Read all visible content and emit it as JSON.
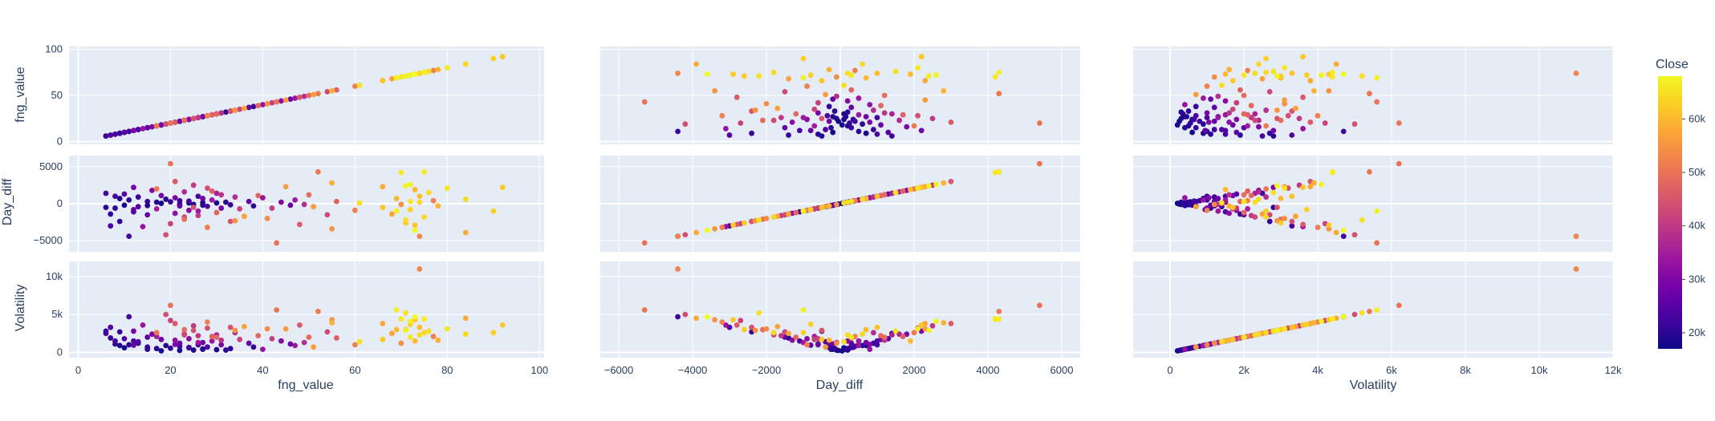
{
  "chart_data": {
    "type": "scatter",
    "subtype": "scatter-matrix",
    "variables": [
      "fng_value",
      "Day_diff",
      "Volatility"
    ],
    "axis_titles": {
      "x": [
        "fng_value",
        "Day_diff",
        "Volatility"
      ],
      "y": [
        "fng_value",
        "Day_diff",
        "Volatility"
      ]
    },
    "ranges": {
      "fng_value": [
        0,
        100
      ],
      "Day_diff": [
        -6500,
        6500
      ],
      "Volatility": [
        -1000,
        12000
      ]
    },
    "tick_labels": {
      "x": [
        [
          "0",
          "20",
          "40",
          "60",
          "80",
          "100"
        ],
        [
          "−6000",
          "−4000",
          "−2000",
          "0",
          "2000",
          "4000",
          "6000"
        ],
        [
          "0",
          "2k",
          "4k",
          "6k",
          "8k",
          "10k",
          "12k"
        ]
      ],
      "y": [
        [
          "0",
          "50",
          "100"
        ],
        [
          "−5000",
          "0",
          "5000"
        ],
        [
          "0",
          "5k",
          "10k"
        ]
      ]
    },
    "colorbar": {
      "title": "Close",
      "ticks": [
        "20k",
        "30k",
        "40k",
        "50k",
        "60k"
      ],
      "range": [
        17000,
        68000
      ],
      "colorscale": [
        "#0d0887",
        "#46039f",
        "#7201a8",
        "#9c179e",
        "#bd3786",
        "#d8576b",
        "#ed7953",
        "#fb9f3a",
        "#fdca26",
        "#f0f921"
      ]
    },
    "grid": true,
    "background": "#e5ecf6",
    "points": [
      {
        "fng": 92,
        "diff": 2200,
        "vol": 3600,
        "close": 62000
      },
      {
        "fng": 90,
        "diff": -1000,
        "vol": 2600,
        "close": 63000
      },
      {
        "fng": 84,
        "diff": -3900,
        "vol": 4500,
        "close": 58000
      },
      {
        "fng": 84,
        "diff": 600,
        "vol": 2400,
        "close": 64000
      },
      {
        "fng": 80,
        "diff": 2100,
        "vol": 3100,
        "close": 66000
      },
      {
        "fng": 78,
        "diff": -300,
        "vol": 1600,
        "close": 59000
      },
      {
        "fng": 77,
        "diff": 400,
        "vol": 2100,
        "close": 52000
      },
      {
        "fng": 76,
        "diff": 1500,
        "vol": 2800,
        "close": 65000
      },
      {
        "fng": 75,
        "diff": -1800,
        "vol": 2600,
        "close": 64000
      },
      {
        "fng": 74,
        "diff": 1000,
        "vol": 3300,
        "close": 61000
      },
      {
        "fng": 74,
        "diff": -4400,
        "vol": 11000,
        "close": 53000
      },
      {
        "fng": 73,
        "diff": -2900,
        "vol": 4300,
        "close": 62000
      },
      {
        "fng": 73,
        "diff": 1900,
        "vol": 1500,
        "close": 60000
      },
      {
        "fng": 72,
        "diff": -800,
        "vol": 3700,
        "close": 63000
      },
      {
        "fng": 72,
        "diff": 300,
        "vol": 2000,
        "close": 66000
      },
      {
        "fng": 71,
        "diff": -2200,
        "vol": 5200,
        "close": 65000
      },
      {
        "fng": 71,
        "diff": 2400,
        "vol": 2900,
        "close": 67000
      },
      {
        "fng": 70,
        "diff": 4200,
        "vol": 4400,
        "close": 66000
      },
      {
        "fng": 70,
        "diff": -100,
        "vol": 1200,
        "close": 54000
      },
      {
        "fng": 69,
        "diff": 700,
        "vol": 3000,
        "close": 60000
      },
      {
        "fng": 68,
        "diff": -1400,
        "vol": 2500,
        "close": 57000
      },
      {
        "fng": 66,
        "diff": 2300,
        "vol": 3800,
        "close": 58000
      },
      {
        "fng": 66,
        "diff": -500,
        "vol": 1700,
        "close": 62000
      },
      {
        "fng": 61,
        "diff": 100,
        "vol": 1400,
        "close": 65000
      },
      {
        "fng": 60,
        "diff": -900,
        "vol": 1000,
        "close": 52000
      },
      {
        "fng": 56,
        "diff": 300,
        "vol": 1900,
        "close": 47000
      },
      {
        "fng": 55,
        "diff": -3400,
        "vol": 4300,
        "close": 55000
      },
      {
        "fng": 54,
        "diff": -1500,
        "vol": 2700,
        "close": 43000
      },
      {
        "fng": 52,
        "diff": 4300,
        "vol": 5400,
        "close": 51000
      },
      {
        "fng": 51,
        "diff": -400,
        "vol": 700,
        "close": 56000
      },
      {
        "fng": 50,
        "diff": 1200,
        "vol": 2000,
        "close": 49000
      },
      {
        "fng": 49,
        "diff": -100,
        "vol": 1300,
        "close": 38000
      },
      {
        "fng": 48,
        "diff": -2800,
        "vol": 3600,
        "close": 46000
      },
      {
        "fng": 47,
        "diff": 500,
        "vol": 900,
        "close": 34000
      },
      {
        "fng": 46,
        "diff": -200,
        "vol": 1100,
        "close": 27000
      },
      {
        "fng": 44,
        "diff": 200,
        "vol": 1500,
        "close": 31000
      },
      {
        "fng": 43,
        "diff": -5300,
        "vol": 5600,
        "close": 50000
      },
      {
        "fng": 41,
        "diff": -2000,
        "vol": 3100,
        "close": 54000
      },
      {
        "fng": 40,
        "diff": 800,
        "vol": 400,
        "close": 33000
      },
      {
        "fng": 38,
        "diff": -300,
        "vol": 700,
        "close": 21000
      },
      {
        "fng": 37,
        "diff": 300,
        "vol": 1200,
        "close": 26000
      },
      {
        "fng": 35,
        "diff": -700,
        "vol": 1700,
        "close": 42000
      },
      {
        "fng": 34,
        "diff": 900,
        "vol": 2600,
        "close": 38000
      },
      {
        "fng": 33,
        "diff": -2400,
        "vol": 3300,
        "close": 45000
      },
      {
        "fng": 32,
        "diff": 200,
        "vol": 300,
        "close": 20000
      },
      {
        "fng": 31,
        "diff": -600,
        "vol": 1000,
        "close": 29000
      },
      {
        "fng": 30,
        "diff": 1400,
        "vol": 2300,
        "close": 36000
      },
      {
        "fng": 30,
        "diff": -1200,
        "vol": 2000,
        "close": 48000
      },
      {
        "fng": 29,
        "diff": 500,
        "vol": 1500,
        "close": 34000
      },
      {
        "fng": 28,
        "diff": -3200,
        "vol": 4000,
        "close": 52000
      },
      {
        "fng": 28,
        "diff": 2100,
        "vol": 3200,
        "close": 44000
      },
      {
        "fng": 27,
        "diff": -200,
        "vol": 400,
        "close": 19000
      },
      {
        "fng": 27,
        "diff": 700,
        "vol": 1300,
        "close": 28000
      },
      {
        "fng": 26,
        "diff": -1600,
        "vol": 2200,
        "close": 40000
      },
      {
        "fng": 26,
        "diff": 1000,
        "vol": 1000,
        "close": 23000
      },
      {
        "fng": 25,
        "diff": -500,
        "vol": 2900,
        "close": 45000
      },
      {
        "fng": 25,
        "diff": 2500,
        "vol": 3500,
        "close": 40000
      },
      {
        "fng": 24,
        "diff": 100,
        "vol": 600,
        "close": 18000
      },
      {
        "fng": 24,
        "diff": -900,
        "vol": 1800,
        "close": 31000
      },
      {
        "fng": 23,
        "diff": 1600,
        "vol": 2400,
        "close": 37000
      },
      {
        "fng": 23,
        "diff": -2100,
        "vol": 3000,
        "close": 49000
      },
      {
        "fng": 22,
        "diff": 400,
        "vol": 800,
        "close": 22000
      },
      {
        "fng": 22,
        "diff": -300,
        "vol": 1200,
        "close": 27000
      },
      {
        "fng": 21,
        "diff": 3000,
        "vol": 3800,
        "close": 46000
      },
      {
        "fng": 21,
        "diff": -1300,
        "vol": 1600,
        "close": 32000
      },
      {
        "fng": 20,
        "diff": 5400,
        "vol": 6200,
        "close": 50000
      },
      {
        "fng": 20,
        "diff": -2700,
        "vol": 4200,
        "close": 42000
      },
      {
        "fng": 19,
        "diff": 600,
        "vol": 900,
        "close": 20000
      },
      {
        "fng": 19,
        "diff": -4200,
        "vol": 5000,
        "close": 44000
      },
      {
        "fng": 18,
        "diff": 1100,
        "vol": 1700,
        "close": 28000
      },
      {
        "fng": 17,
        "diff": -700,
        "vol": 2100,
        "close": 35000
      },
      {
        "fng": 17,
        "diff": 200,
        "vol": 500,
        "close": 19000
      },
      {
        "fng": 16,
        "diff": 1800,
        "vol": 2400,
        "close": 30000
      },
      {
        "fng": 15,
        "diff": -1500,
        "vol": 2000,
        "close": 26000
      },
      {
        "fng": 15,
        "diff": 300,
        "vol": 700,
        "close": 21000
      },
      {
        "fng": 14,
        "diff": -3100,
        "vol": 3600,
        "close": 33000
      },
      {
        "fng": 13,
        "diff": 900,
        "vol": 1200,
        "close": 22000
      },
      {
        "fng": 13,
        "diff": -400,
        "vol": 1400,
        "close": 24000
      },
      {
        "fng": 12,
        "diff": 2200,
        "vol": 2800,
        "close": 29000
      },
      {
        "fng": 12,
        "diff": -1100,
        "vol": 1500,
        "close": 23000
      },
      {
        "fng": 11,
        "diff": 500,
        "vol": 1000,
        "close": 20000
      },
      {
        "fng": 11,
        "diff": -4400,
        "vol": 4700,
        "close": 22000
      },
      {
        "fng": 10,
        "diff": 1300,
        "vol": 1800,
        "close": 25000
      },
      {
        "fng": 10,
        "diff": -200,
        "vol": 600,
        "close": 18000
      },
      {
        "fng": 9,
        "diff": -2400,
        "vol": 2700,
        "close": 21000
      },
      {
        "fng": 9,
        "diff": 700,
        "vol": 900,
        "close": 19000
      },
      {
        "fng": 8,
        "diff": -600,
        "vol": 1100,
        "close": 20000
      },
      {
        "fng": 8,
        "diff": 1000,
        "vol": 1500,
        "close": 23000
      },
      {
        "fng": 7,
        "diff": -1400,
        "vol": 1900,
        "close": 21000
      },
      {
        "fng": 7,
        "diff": -3000,
        "vol": 3300,
        "close": 24000
      },
      {
        "fng": 6,
        "diff": 1400,
        "vol": 2500,
        "close": 22000
      },
      {
        "fng": 6,
        "diff": -500,
        "vol": 2800,
        "close": 20000
      },
      {
        "fng": 25,
        "diff": -100,
        "vol": 300,
        "close": 18500
      },
      {
        "fng": 30,
        "diff": 100,
        "vol": 350,
        "close": 19000
      },
      {
        "fng": 22,
        "diff": -50,
        "vol": 250,
        "close": 18200
      },
      {
        "fng": 18,
        "diff": 50,
        "vol": 200,
        "close": 18000
      },
      {
        "fng": 27,
        "diff": 150,
        "vol": 450,
        "close": 19500
      },
      {
        "fng": 33,
        "diff": -150,
        "vol": 500,
        "close": 20500
      },
      {
        "fng": 15,
        "diff": -250,
        "vol": 400,
        "close": 19800
      },
      {
        "fng": 20,
        "diff": 250,
        "vol": 550,
        "close": 21000
      },
      {
        "fng": 24,
        "diff": 350,
        "vol": 650,
        "close": 22500
      },
      {
        "fng": 28,
        "diff": -350,
        "vol": 700,
        "close": 23500
      },
      {
        "fng": 12,
        "diff": -800,
        "vol": 950,
        "close": 26000
      },
      {
        "fng": 21,
        "diff": 800,
        "vol": 1050,
        "close": 30000
      },
      {
        "fng": 26,
        "diff": -1000,
        "vol": 1300,
        "close": 34000
      },
      {
        "fng": 31,
        "diff": 1200,
        "vol": 1600,
        "close": 39000
      },
      {
        "fng": 23,
        "diff": -1800,
        "vol": 2300,
        "close": 43000
      },
      {
        "fng": 29,
        "diff": 1700,
        "vol": 2100,
        "close": 47000
      },
      {
        "fng": 17,
        "diff": 2000,
        "vol": 2600,
        "close": 51000
      },
      {
        "fng": 34,
        "diff": -2300,
        "vol": 2900,
        "close": 55000
      },
      {
        "fng": 45,
        "diff": 2300,
        "vol": 3100,
        "close": 56000
      },
      {
        "fng": 42,
        "diff": -600,
        "vol": 1800,
        "close": 41000
      },
      {
        "fng": 39,
        "diff": 1100,
        "vol": 2200,
        "close": 48000
      },
      {
        "fng": 36,
        "diff": -1700,
        "vol": 3400,
        "close": 57000
      },
      {
        "fng": 55,
        "diff": 2800,
        "vol": 3900,
        "close": 59000
      },
      {
        "fng": 72,
        "diff": 2600,
        "vol": 4100,
        "close": 67000
      },
      {
        "fng": 73,
        "diff": -3600,
        "vol": 4700,
        "close": 68000
      },
      {
        "fng": 75,
        "diff": 4300,
        "vol": 4400,
        "close": 66500
      },
      {
        "fng": 69,
        "diff": -1000,
        "vol": 5600,
        "close": 67000
      },
      {
        "fng": 74,
        "diff": 200,
        "vol": 2300,
        "close": 64500
      },
      {
        "fng": 71,
        "diff": -2600,
        "vol": 3000,
        "close": 62500
      }
    ]
  }
}
